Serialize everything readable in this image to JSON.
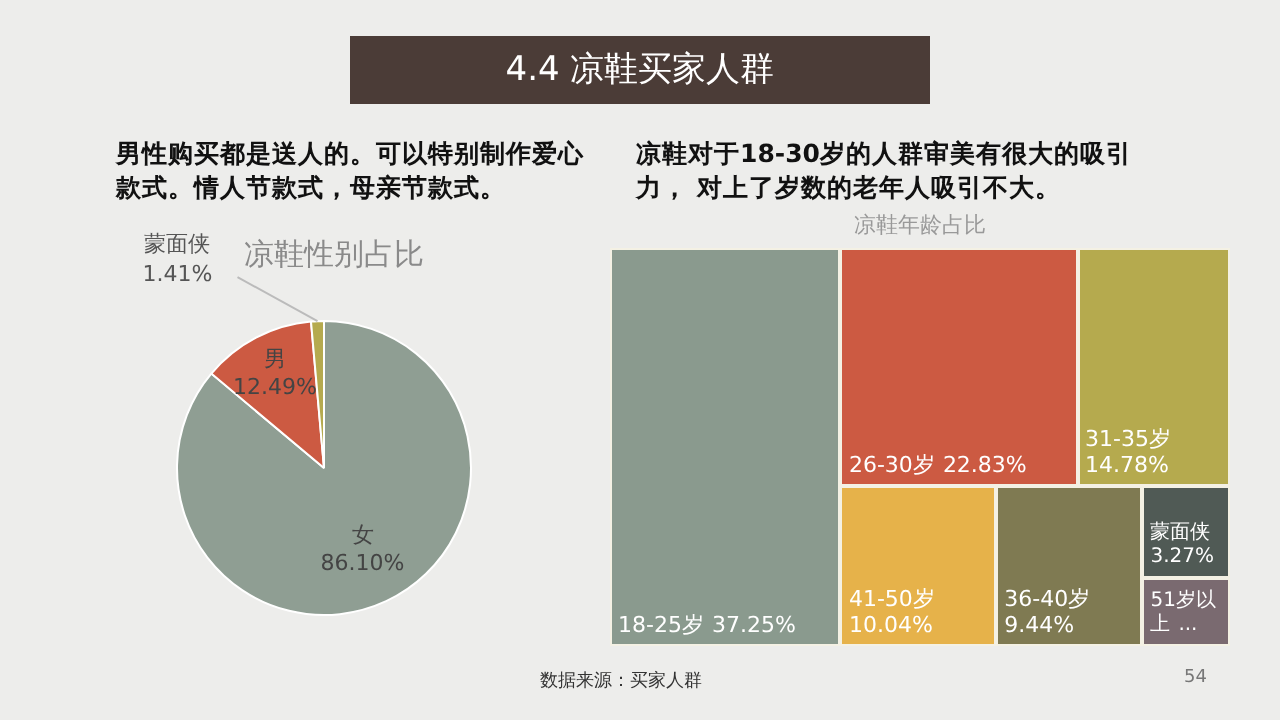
{
  "chart_data": [
    {
      "type": "pie",
      "title": "凉鞋性别占比",
      "categories": [
        "女",
        "男",
        "蒙面侠"
      ],
      "values": [
        86.1,
        12.49,
        1.41
      ],
      "value_labels": [
        "86.10%",
        "12.49%",
        "1.41%"
      ],
      "colors": [
        "#8f9e93",
        "#cc5a42",
        "#b5aa4e"
      ],
      "annotations": [
        "4.4 凉鞋买家人群",
        "男性购买都是送人的。可以特别制作爱心款式。情人节款式，母亲节款式。",
        "数据来源：买家人群",
        "54"
      ]
    },
    {
      "type": "other",
      "title": "凉鞋年龄占比",
      "categories": [
        "18-25岁",
        "26-30岁",
        "31-35岁",
        "41-50岁",
        "36-40岁",
        "蒙面侠",
        "51岁以上"
      ],
      "values": [
        37.25,
        22.83,
        14.78,
        10.04,
        9.44,
        3.27,
        null
      ],
      "value_labels": [
        "37.25%",
        "22.83%",
        "14.78%",
        "10.04%",
        "9.44%",
        "3.27%",
        "..."
      ],
      "colors": [
        "#8a9a8e",
        "#cc5a42",
        "#b5aa4e",
        "#e6b24a",
        "#7f7a52",
        "#505a55",
        "#7a6a70"
      ],
      "annotations": [
        "凉鞋对于18-30岁的人群审美有很大的吸引力， 对上了岁数的老年人吸引不大。"
      ]
    }
  ]
}
